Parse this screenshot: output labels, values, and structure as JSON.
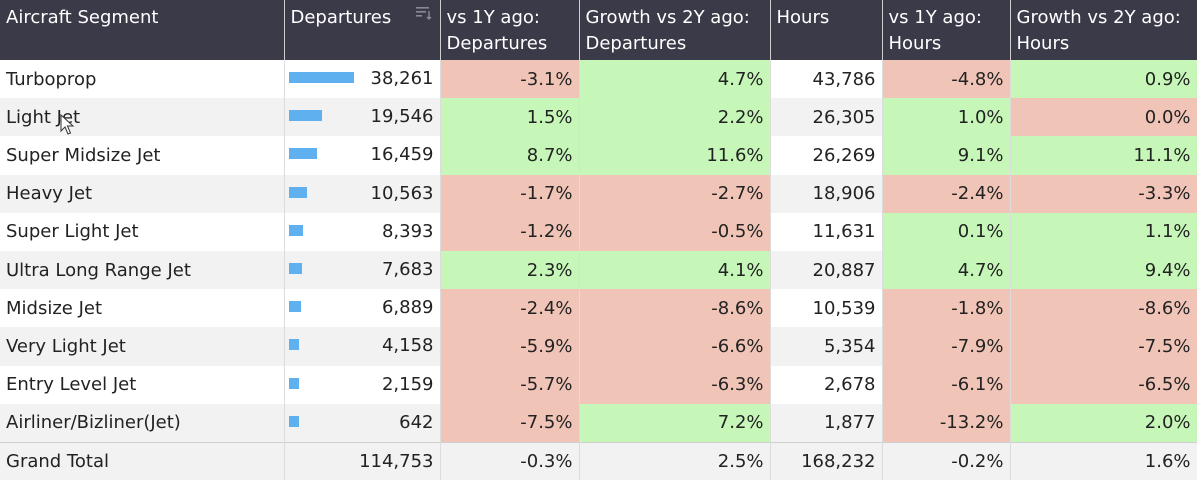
{
  "headers": {
    "segment": "Aircraft Segment",
    "departures": "Departures",
    "vs1y_dep": "vs 1Y ago: Departures",
    "growth2y_dep": "Growth vs 2Y ago: Departures",
    "hours": "Hours",
    "vs1y_hours": "vs 1Y ago: Hours",
    "growth2y_hours": "Growth vs 2Y ago: Hours",
    "sort_icon": "sort-descending-icon"
  },
  "colors": {
    "header_bg": "#3b3a48",
    "negative": "#f0c4b7",
    "positive": "#c6f7b9",
    "bar": "#5fb0ee"
  },
  "rows": [
    {
      "segment": "Turboprop",
      "departures": "38,261",
      "dep_value": 38261,
      "vs1y_dep": "-3.1%",
      "growth2y_dep": "4.7%",
      "hours": "43,786",
      "vs1y_hours": "-4.8%",
      "growth2y_hours": "0.9%"
    },
    {
      "segment": "Light Jet",
      "departures": "19,546",
      "dep_value": 19546,
      "vs1y_dep": "1.5%",
      "growth2y_dep": "2.2%",
      "hours": "26,305",
      "vs1y_hours": "1.0%",
      "growth2y_hours": "0.0%"
    },
    {
      "segment": "Super Midsize Jet",
      "departures": "16,459",
      "dep_value": 16459,
      "vs1y_dep": "8.7%",
      "growth2y_dep": "11.6%",
      "hours": "26,269",
      "vs1y_hours": "9.1%",
      "growth2y_hours": "11.1%"
    },
    {
      "segment": "Heavy Jet",
      "departures": "10,563",
      "dep_value": 10563,
      "vs1y_dep": "-1.7%",
      "growth2y_dep": "-2.7%",
      "hours": "18,906",
      "vs1y_hours": "-2.4%",
      "growth2y_hours": "-3.3%"
    },
    {
      "segment": "Super Light Jet",
      "departures": "8,393",
      "dep_value": 8393,
      "vs1y_dep": "-1.2%",
      "growth2y_dep": "-0.5%",
      "hours": "11,631",
      "vs1y_hours": "0.1%",
      "growth2y_hours": "1.1%"
    },
    {
      "segment": "Ultra Long Range Jet",
      "departures": "7,683",
      "dep_value": 7683,
      "vs1y_dep": "2.3%",
      "growth2y_dep": "4.1%",
      "hours": "20,887",
      "vs1y_hours": "4.7%",
      "growth2y_hours": "9.4%"
    },
    {
      "segment": "Midsize Jet",
      "departures": "6,889",
      "dep_value": 6889,
      "vs1y_dep": "-2.4%",
      "growth2y_dep": "-8.6%",
      "hours": "10,539",
      "vs1y_hours": "-1.8%",
      "growth2y_hours": "-8.6%"
    },
    {
      "segment": "Very Light Jet",
      "departures": "4,158",
      "dep_value": 4158,
      "vs1y_dep": "-5.9%",
      "growth2y_dep": "-6.6%",
      "hours": "5,354",
      "vs1y_hours": "-7.9%",
      "growth2y_hours": "-7.5%"
    },
    {
      "segment": "Entry Level Jet",
      "departures": "2,159",
      "dep_value": 2159,
      "vs1y_dep": "-5.7%",
      "growth2y_dep": "-6.3%",
      "hours": "2,678",
      "vs1y_hours": "-6.1%",
      "growth2y_hours": "-6.5%"
    },
    {
      "segment": "Airliner/Bizliner(Jet)",
      "departures": "642",
      "dep_value": 642,
      "vs1y_dep": "-7.5%",
      "growth2y_dep": "7.2%",
      "hours": "1,877",
      "vs1y_hours": "-13.2%",
      "growth2y_hours": "2.0%"
    }
  ],
  "total": {
    "segment": "Grand Total",
    "departures": "114,753",
    "vs1y_dep": "-0.3%",
    "growth2y_dep": "2.5%",
    "hours": "168,232",
    "vs1y_hours": "-0.2%",
    "growth2y_hours": "1.6%"
  }
}
